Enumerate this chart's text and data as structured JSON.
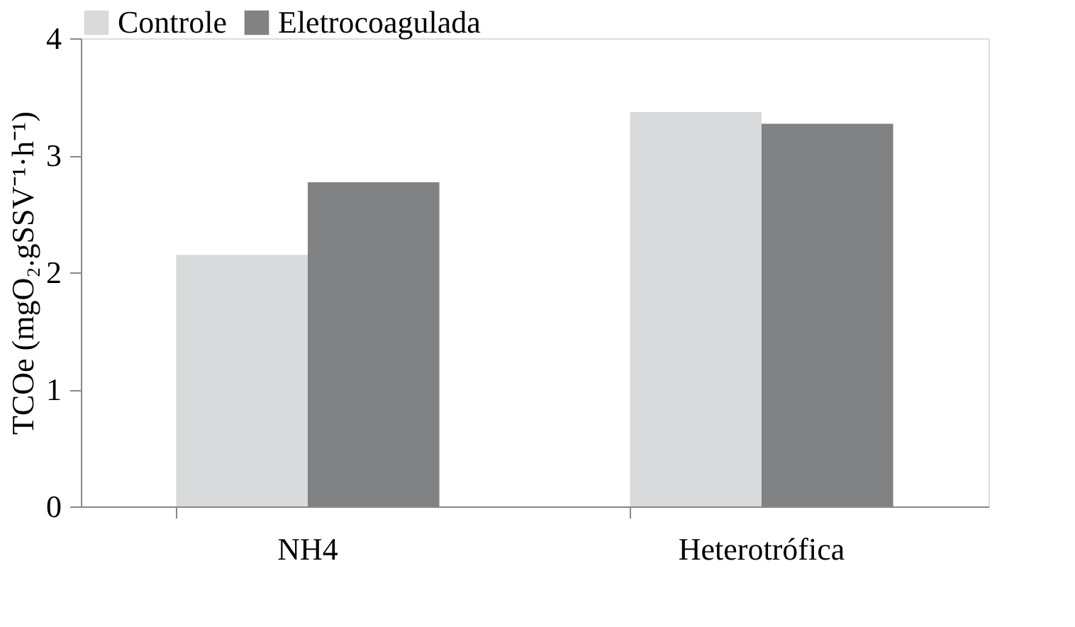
{
  "chart_data": {
    "type": "bar",
    "ylabel": "TCOe (mgO₂.gSSV⁻¹·h⁻¹)",
    "categories": [
      "NH4",
      "Heterotrófica"
    ],
    "series": [
      {
        "name": "Controle",
        "color": "#d9dadb",
        "values": [
          2.15,
          3.37
        ]
      },
      {
        "name": "Eletrocoagulada",
        "color": "#808283",
        "values": [
          2.77,
          3.27
        ]
      }
    ],
    "ylim": [
      0,
      4
    ],
    "yticks": [
      0,
      1,
      2,
      3,
      4
    ],
    "grid": false,
    "legend": "top"
  }
}
